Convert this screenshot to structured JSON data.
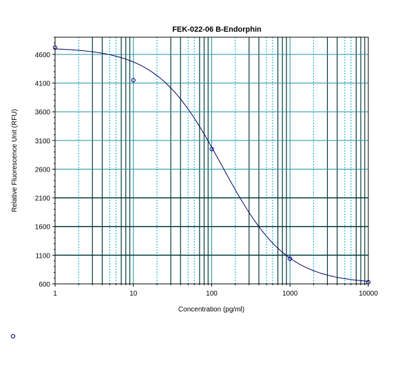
{
  "chart_data": {
    "type": "scatter",
    "title": "FEK-022-06 B-Endorphin",
    "xlabel": "Concentration (pg/ml)",
    "ylabel": "Relative Fluorescence Unit (RFU)",
    "x_scale": "log",
    "xlim": [
      1,
      10000
    ],
    "ylim": [
      600,
      4900
    ],
    "x_ticks": [
      1,
      10,
      100,
      1000,
      10000
    ],
    "x_tick_labels": [
      "1",
      "10",
      "100",
      "1000",
      "10000"
    ],
    "y_ticks": [
      600,
      1100,
      1600,
      2100,
      2600,
      3100,
      3600,
      4100,
      4600
    ],
    "y_tick_labels": [
      "600",
      "1100",
      "1600",
      "2100",
      "2600",
      "3100",
      "3600",
      "4100",
      "4600"
    ],
    "grid": true,
    "colors": {
      "points": "#00008b",
      "curve": "#000060",
      "grid_dark": "#003838",
      "grid_teal": "#1e90a0",
      "grid_cyan": "#00aadd"
    },
    "series": [
      {
        "points": [
          {
            "x": 1,
            "y": 4720
          },
          {
            "x": 10,
            "y": 4150
          },
          {
            "x": 100,
            "y": 2950
          },
          {
            "x": 1000,
            "y": 1040
          },
          {
            "x": 10000,
            "y": 630
          }
        ]
      }
    ],
    "fit_curve": {
      "model": "four-parameter logistic",
      "top": 4720,
      "bottom": 600,
      "ec50": 135,
      "hill_slope": 1.05
    },
    "legend": {
      "placement": "bottom-left",
      "entries": [
        {
          "marker": "open-circle"
        }
      ]
    }
  }
}
